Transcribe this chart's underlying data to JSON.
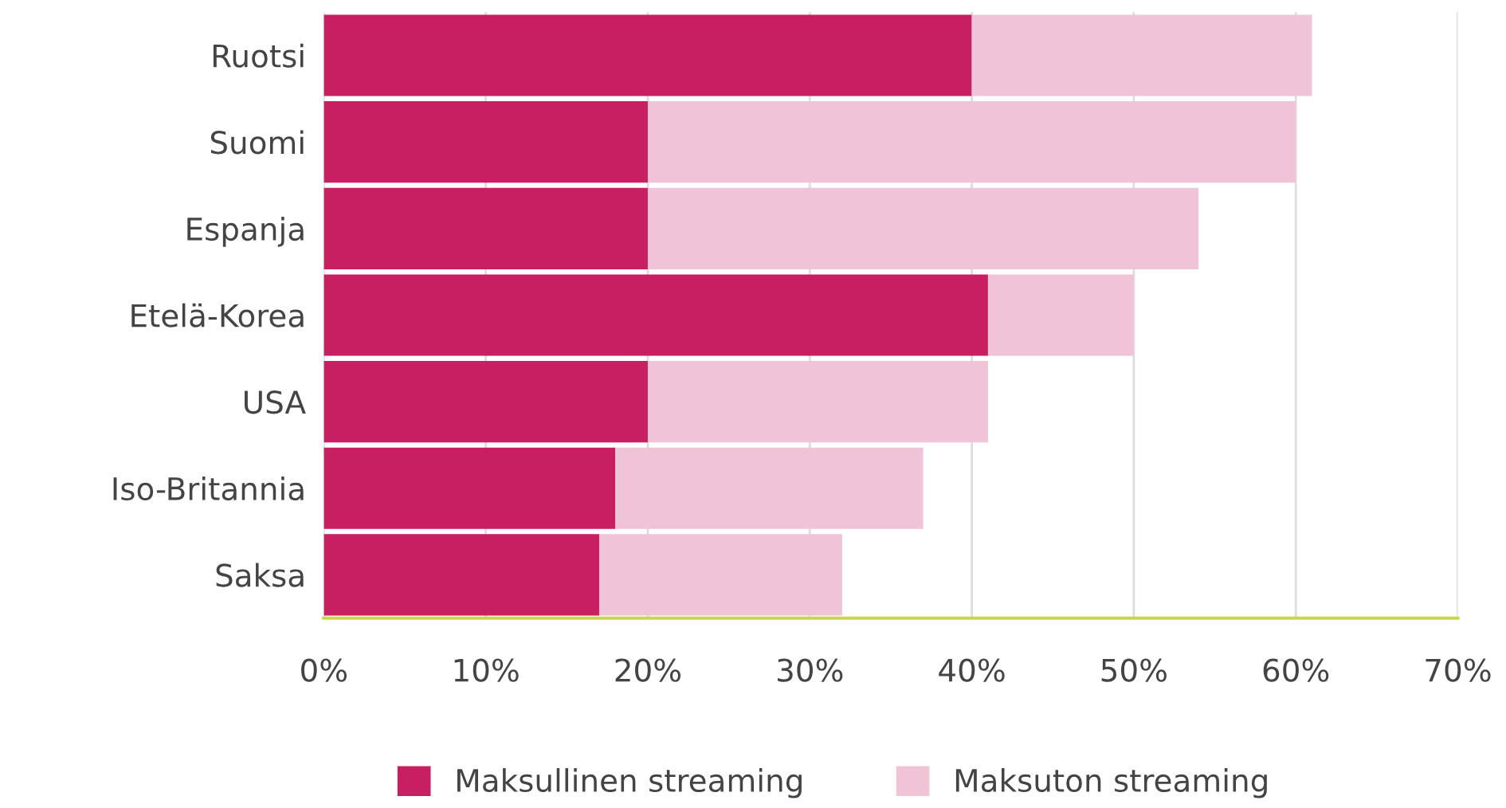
{
  "chart_data": {
    "type": "bar",
    "orientation": "horizontal",
    "stacked": true,
    "categories": [
      "Ruotsi",
      "Suomi",
      "Espanja",
      "Etelä-Korea",
      "USA",
      "Iso-Britannia",
      "Saksa"
    ],
    "series": [
      {
        "name": "Maksullinen streaming",
        "color": "#c81e62",
        "values": [
          40,
          20,
          20,
          41,
          20,
          18,
          17
        ]
      },
      {
        "name": "Maksuton streaming",
        "color": "#f0c4d6",
        "values": [
          21,
          40,
          34,
          9,
          21,
          19,
          15
        ]
      }
    ],
    "xlim": [
      0,
      70
    ],
    "xticks": [
      {
        "value": 0,
        "label": "0%"
      },
      {
        "value": 10,
        "label": "10%"
      },
      {
        "value": 20,
        "label": "20%"
      },
      {
        "value": 30,
        "label": "30%"
      },
      {
        "value": 40,
        "label": "40%"
      },
      {
        "value": 50,
        "label": "50%"
      },
      {
        "value": 60,
        "label": "60%"
      },
      {
        "value": 70,
        "label": "70%"
      }
    ],
    "grid": "x",
    "legend": "bottom"
  }
}
